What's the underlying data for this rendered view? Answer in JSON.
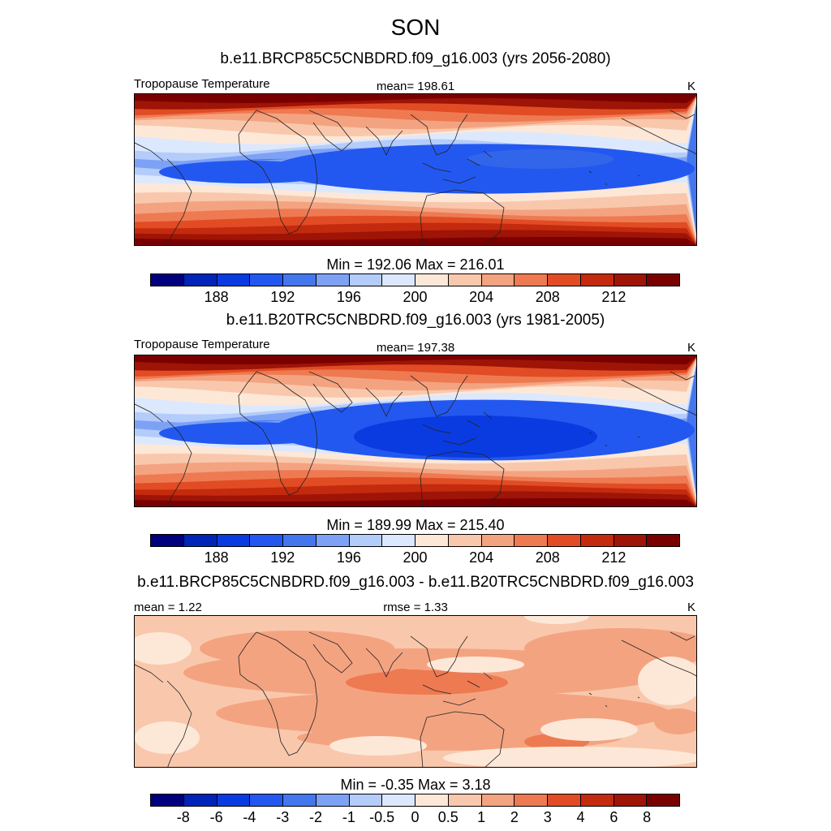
{
  "season": "SON",
  "panels": [
    {
      "title": "b.e11.BRCP85C5CNBDRD.f09_g16.003 (yrs 2056-2080)",
      "left_label": "Tropopause Temperature",
      "mid_label": "mean= 198.61",
      "units": "K",
      "minmax": "Min = 192.06 Max = 216.01",
      "field": "absolute"
    },
    {
      "title": "b.e11.B20TRC5CNBDRD.f09_g16.003 (yrs 1981-2005)",
      "left_label": "Tropopause Temperature",
      "mid_label": "mean= 197.38",
      "units": "K",
      "minmax": "Min = 189.99 Max = 215.40",
      "field": "absolute"
    },
    {
      "title": "b.e11.BRCP85C5CNBDRD.f09_g16.003 - b.e11.B20TRC5CNBDRD.f09_g16.003",
      "left_label": "mean =   1.22",
      "mid_label": "rmse =   1.33",
      "units": "K",
      "minmax": "Min =  -0.35 Max =   3.18",
      "field": "difference"
    }
  ],
  "colorbar_abs": {
    "labels": [
      "188",
      "192",
      "196",
      "200",
      "204",
      "208",
      "212"
    ],
    "colors": [
      "#00007f",
      "#0024b8",
      "#0a3be0",
      "#2358f0",
      "#4477ee",
      "#7da2f5",
      "#b4ccfa",
      "#dce8fd",
      "#fde8d8",
      "#f9c8ac",
      "#f4a381",
      "#ee7a52",
      "#e14c24",
      "#c42a0e",
      "#9e1406",
      "#7a0000"
    ]
  },
  "colorbar_diff": {
    "labels": [
      "-8",
      "-6",
      "-4",
      "-3",
      "-2",
      "-1",
      "-0.5",
      "0",
      "0.5",
      "1",
      "2",
      "3",
      "4",
      "6",
      "8"
    ],
    "colors": [
      "#00007f",
      "#0024b8",
      "#0a3be0",
      "#2358f0",
      "#4477ee",
      "#7da2f5",
      "#b4ccfa",
      "#dce8fd",
      "#fde8d8",
      "#f9c8ac",
      "#f4a381",
      "#ee7a52",
      "#e14c24",
      "#c42a0e",
      "#9e1406",
      "#7a0000"
    ]
  }
}
